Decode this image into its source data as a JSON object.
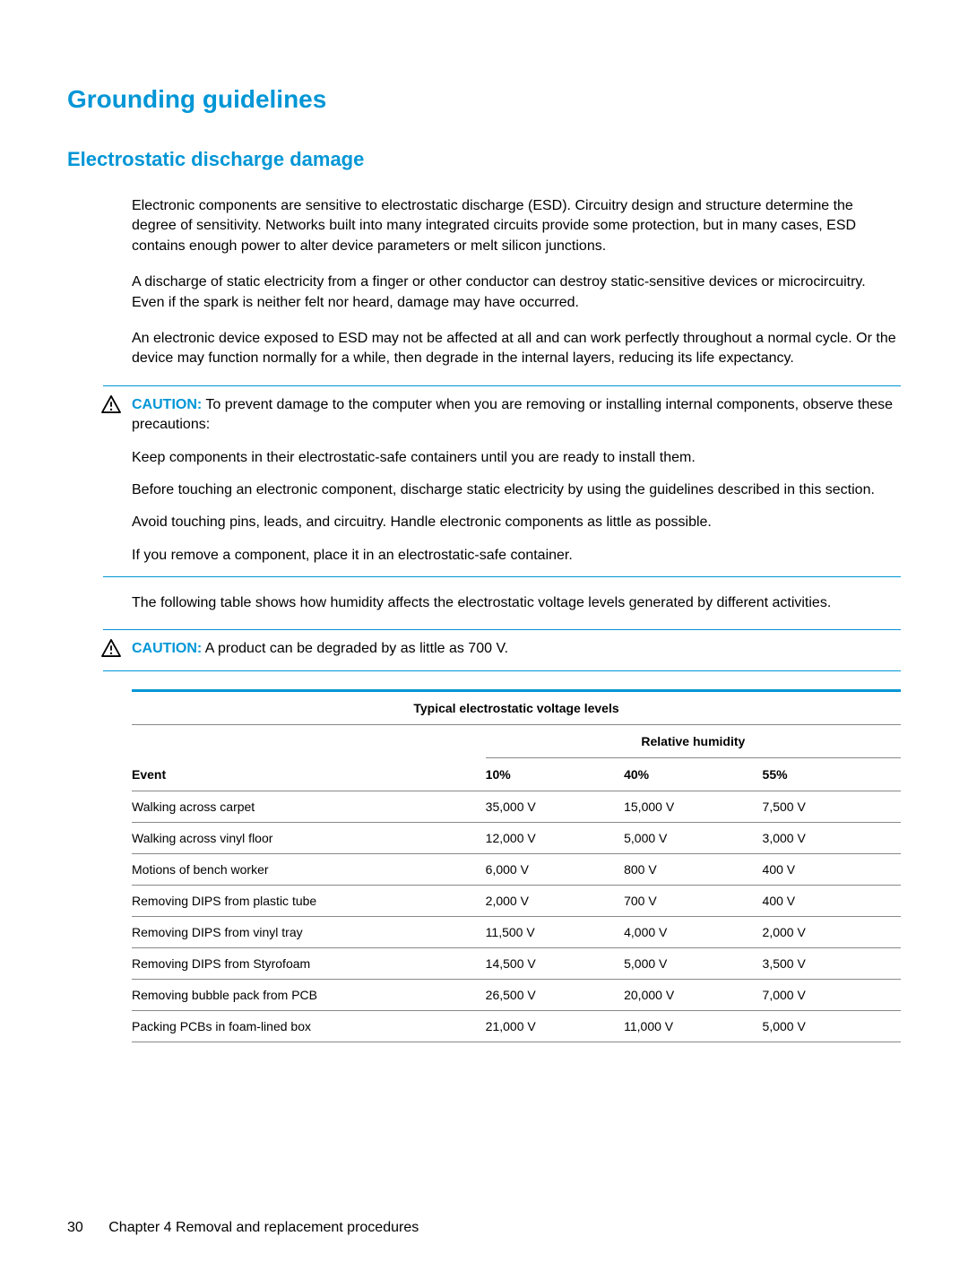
{
  "colors": {
    "accent": "#0096d6",
    "text": "#000000",
    "rule": "#888888"
  },
  "heading1": "Grounding guidelines",
  "heading2": "Electrostatic discharge damage",
  "para1": "Electronic components are sensitive to electrostatic discharge (ESD). Circuitry design and structure determine the degree of sensitivity. Networks built into many integrated circuits provide some protection, but in many cases, ESD contains enough power to alter device parameters or melt silicon junctions.",
  "para2": "A discharge of static electricity from a finger or other conductor can destroy static-sensitive devices or microcircuitry. Even if the spark is neither felt nor heard, damage may have occurred.",
  "para3": "An electronic device exposed to ESD may not be affected at all and can work perfectly throughout a normal cycle. Or the device may function normally for a while, then degrade in the internal layers, reducing its life expectancy.",
  "caution1": {
    "label": "CAUTION:",
    "lead": "To prevent damage to the computer when you are removing or installing internal components, observe these precautions:",
    "items": [
      "Keep components in their electrostatic-safe containers until you are ready to install them.",
      "Before touching an electronic component, discharge static electricity by using the guidelines described in this section.",
      "Avoid touching pins, leads, and circuitry. Handle electronic components as little as possible.",
      "If you remove a component, place it in an electrostatic-safe container."
    ]
  },
  "para4": "The following table shows how humidity affects the electrostatic voltage levels generated by different activities.",
  "caution2": {
    "label": "CAUTION:",
    "text": "A product can be degraded by as little as 700 V."
  },
  "table": {
    "title": "Typical electrostatic voltage levels",
    "subhead": "Relative humidity",
    "columns": [
      "Event",
      "10%",
      "40%",
      "55%"
    ],
    "rows": [
      [
        "Walking across carpet",
        "35,000 V",
        "15,000 V",
        "7,500 V"
      ],
      [
        "Walking across vinyl floor",
        "12,000 V",
        "5,000 V",
        "3,000 V"
      ],
      [
        "Motions of bench worker",
        "6,000 V",
        "800 V",
        "400 V"
      ],
      [
        "Removing DIPS from plastic tube",
        "2,000 V",
        "700 V",
        "400 V"
      ],
      [
        "Removing DIPS from vinyl tray",
        "11,500 V",
        "4,000 V",
        "2,000 V"
      ],
      [
        "Removing DIPS from Styrofoam",
        "14,500 V",
        "5,000 V",
        "3,500 V"
      ],
      [
        "Removing bubble pack from PCB",
        "26,500 V",
        "20,000 V",
        "7,000 V"
      ],
      [
        "Packing PCBs in foam-lined box",
        "21,000 V",
        "11,000 V",
        "5,000 V"
      ]
    ]
  },
  "footer": {
    "page": "30",
    "chapter": "Chapter 4   Removal and replacement procedures"
  }
}
